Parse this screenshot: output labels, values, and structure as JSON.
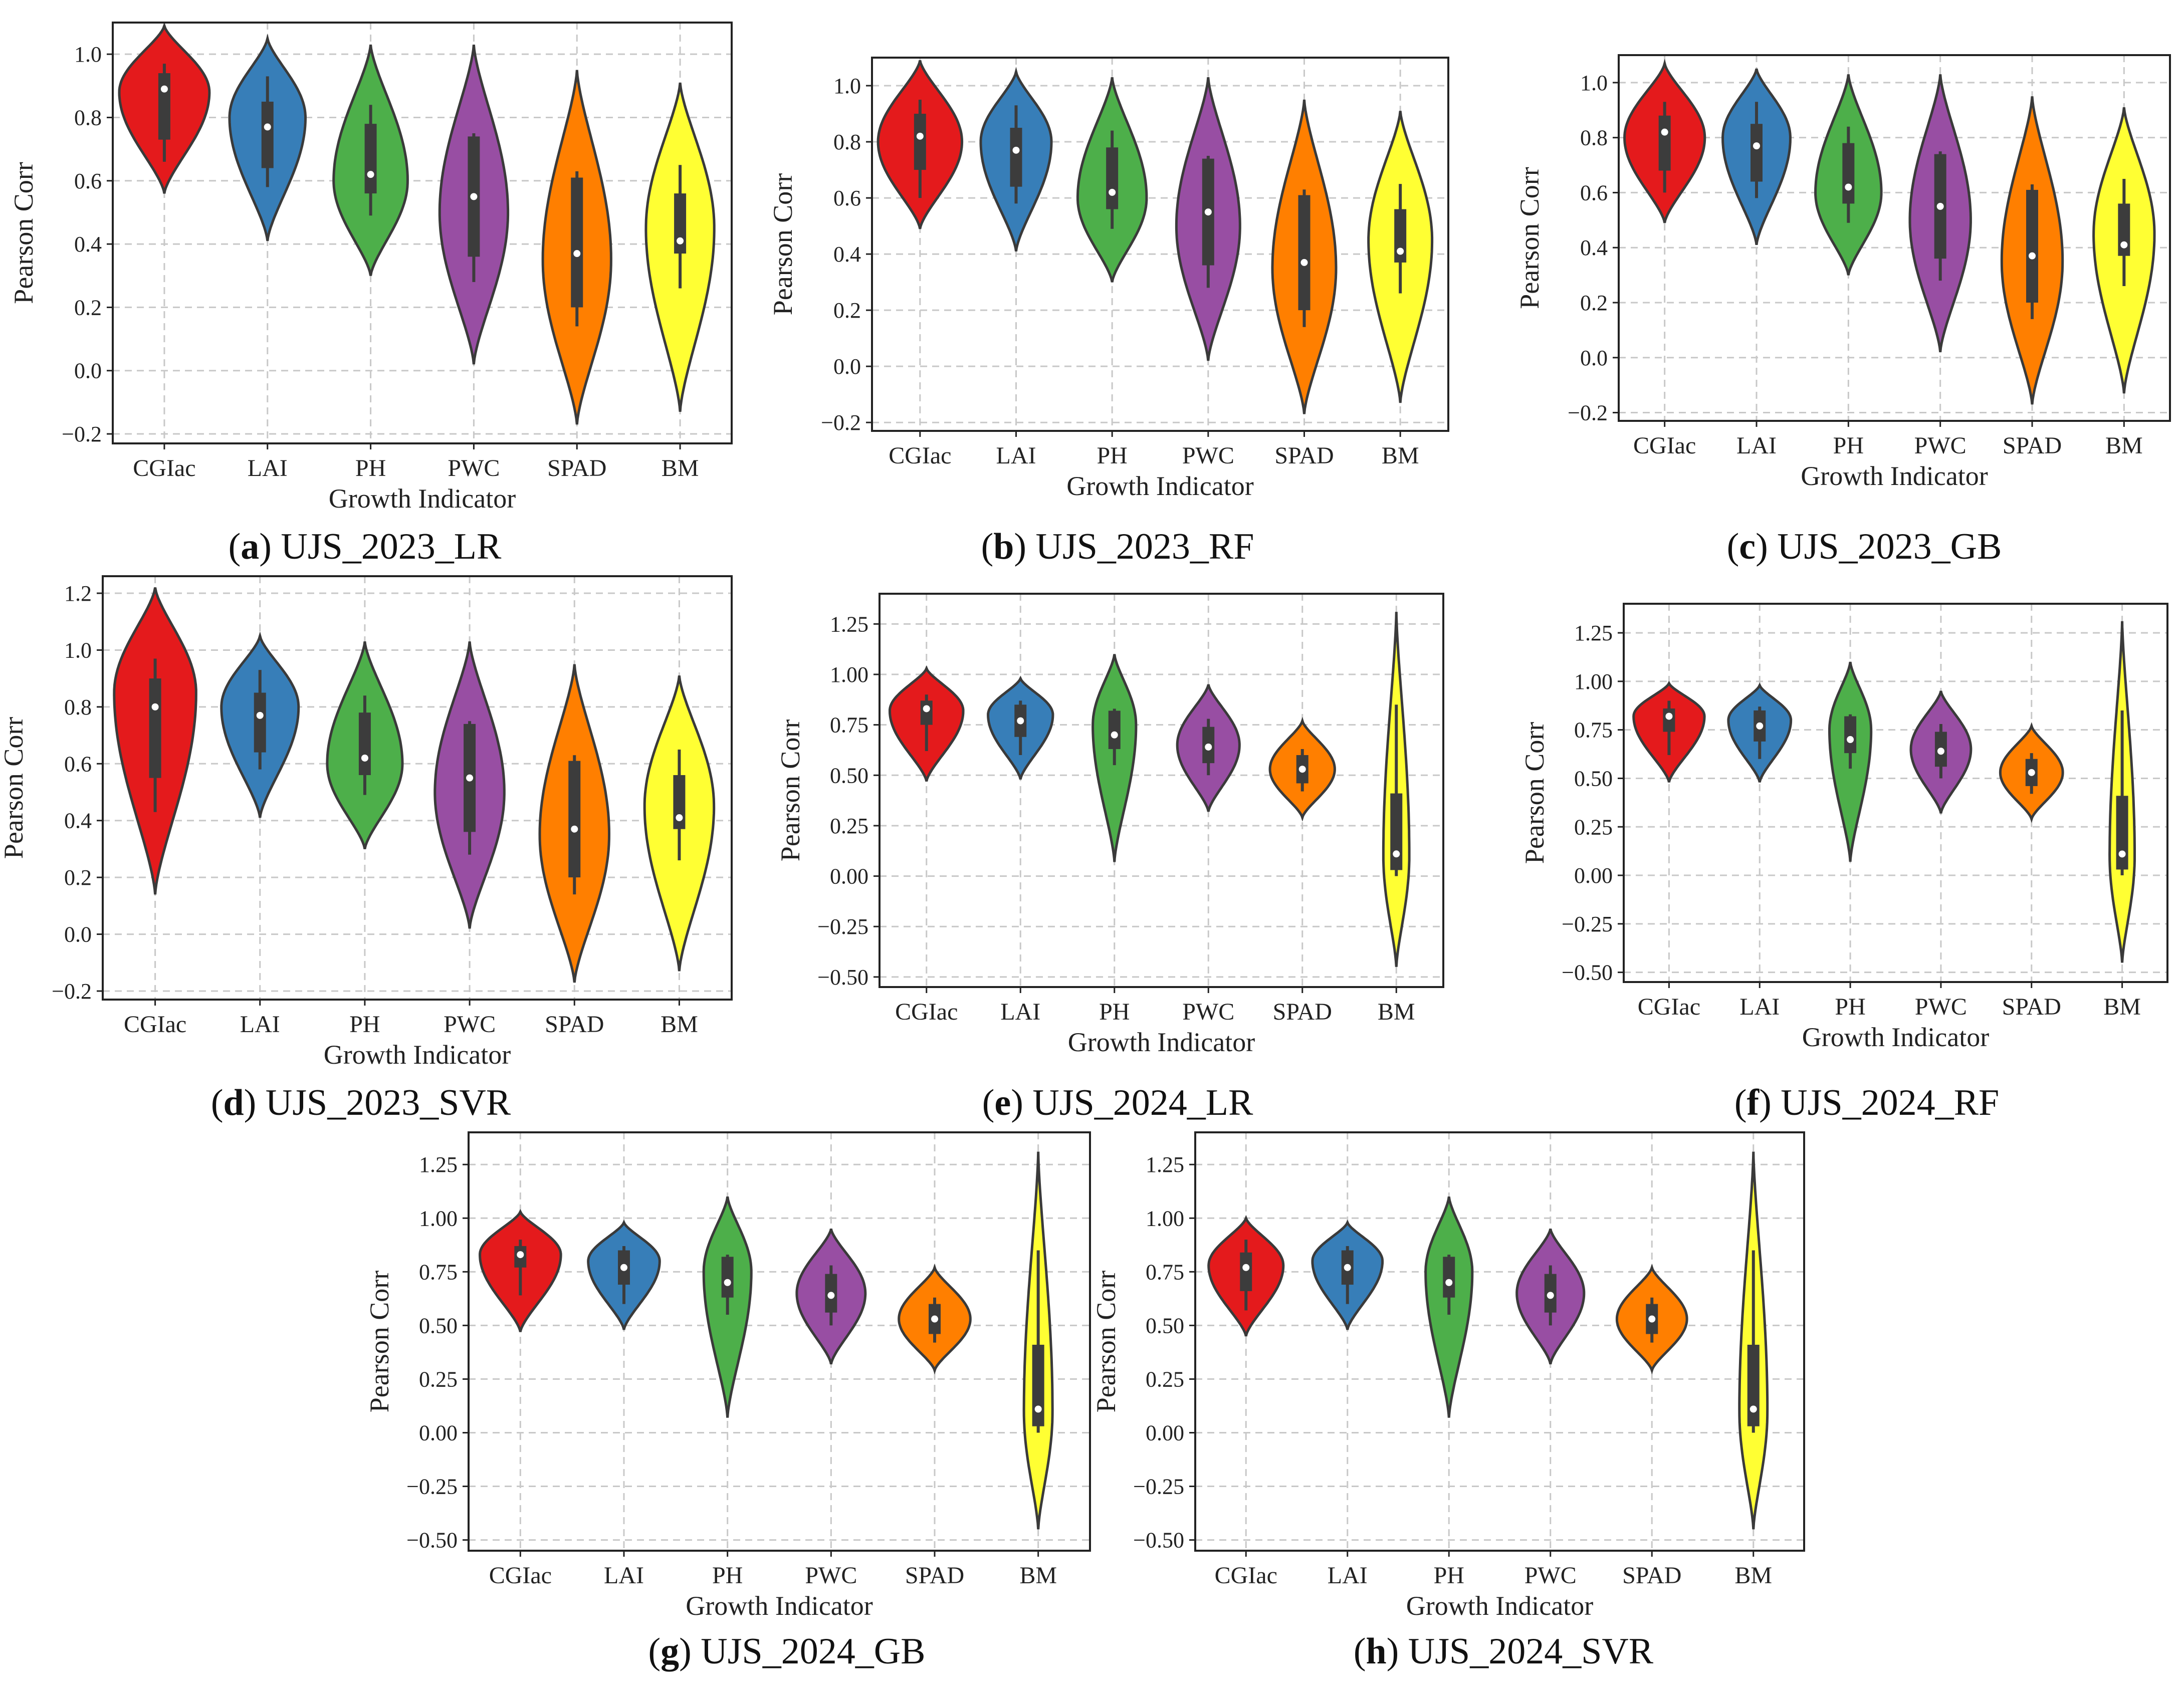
{
  "figure": {
    "xlabel": "Growth Indicator",
    "ylabel": "Pearson Corr",
    "palette": {
      "CGIac": "#e41a1c",
      "LAI": "#377eb8",
      "PH": "#4daf4a",
      "PWC": "#984ea3",
      "SPAD": "#ff7f00",
      "BM": "#ffff33"
    },
    "edge_color": "#3a3a3a",
    "grid_color": "#c8c8c8"
  },
  "chart_data": [
    {
      "type": "violin",
      "letter": "a",
      "caption": "UJS_2023_LR",
      "categories": [
        "CGIac",
        "LAI",
        "PH",
        "PWC",
        "SPAD",
        "BM"
      ],
      "xlabel": "Growth Indicator",
      "ylabel": "Pearson Corr",
      "ylim": [
        -0.23,
        1.1
      ],
      "yticks": [
        "1.0",
        "0.8",
        "0.6",
        "0.4",
        "0.2",
        "0.0",
        "−0.2"
      ],
      "ytick_values": [
        1.0,
        0.8,
        0.6,
        0.4,
        0.2,
        0.0,
        -0.2
      ],
      "series": [
        {
          "name": "CGIac",
          "min": 0.56,
          "max": 1.09,
          "q1": 0.73,
          "median": 0.89,
          "q3": 0.94,
          "wlo": 0.66,
          "whi": 0.97,
          "peak": 0.88,
          "width": 0.95
        },
        {
          "name": "LAI",
          "min": 0.41,
          "max": 1.05,
          "q1": 0.64,
          "median": 0.77,
          "q3": 0.85,
          "wlo": 0.58,
          "whi": 0.93,
          "peak": 0.8,
          "width": 0.8
        },
        {
          "name": "PH",
          "min": 0.3,
          "max": 1.03,
          "q1": 0.56,
          "median": 0.62,
          "q3": 0.78,
          "wlo": 0.49,
          "whi": 0.84,
          "peak": 0.6,
          "width": 0.78
        },
        {
          "name": "PWC",
          "min": 0.02,
          "max": 1.03,
          "q1": 0.36,
          "median": 0.55,
          "q3": 0.74,
          "wlo": 0.28,
          "whi": 0.75,
          "peak": 0.5,
          "width": 0.72
        },
        {
          "name": "SPAD",
          "min": -0.17,
          "max": 0.95,
          "q1": 0.2,
          "median": 0.37,
          "q3": 0.61,
          "wlo": 0.14,
          "whi": 0.63,
          "peak": 0.35,
          "width": 0.72
        },
        {
          "name": "BM",
          "min": -0.13,
          "max": 0.91,
          "q1": 0.37,
          "median": 0.41,
          "q3": 0.56,
          "wlo": 0.26,
          "whi": 0.65,
          "peak": 0.45,
          "width": 0.72
        }
      ]
    },
    {
      "type": "violin",
      "letter": "b",
      "caption": "UJS_2023_RF",
      "categories": [
        "CGIac",
        "LAI",
        "PH",
        "PWC",
        "SPAD",
        "BM"
      ],
      "xlabel": "Growth Indicator",
      "ylabel": "Pearson Corr",
      "ylim": [
        -0.23,
        1.1
      ],
      "yticks": [
        "1.0",
        "0.8",
        "0.6",
        "0.4",
        "0.2",
        "0.0",
        "−0.2"
      ],
      "ytick_values": [
        1.0,
        0.8,
        0.6,
        0.4,
        0.2,
        0.0,
        -0.2
      ],
      "series": [
        {
          "name": "CGIac",
          "min": 0.49,
          "max": 1.09,
          "q1": 0.7,
          "median": 0.82,
          "q3": 0.9,
          "wlo": 0.6,
          "whi": 0.95,
          "peak": 0.8,
          "width": 0.95
        },
        {
          "name": "LAI",
          "min": 0.41,
          "max": 1.05,
          "q1": 0.64,
          "median": 0.77,
          "q3": 0.85,
          "wlo": 0.58,
          "whi": 0.93,
          "peak": 0.8,
          "width": 0.8
        },
        {
          "name": "PH",
          "min": 0.3,
          "max": 1.03,
          "q1": 0.56,
          "median": 0.62,
          "q3": 0.78,
          "wlo": 0.49,
          "whi": 0.84,
          "peak": 0.6,
          "width": 0.78
        },
        {
          "name": "PWC",
          "min": 0.02,
          "max": 1.03,
          "q1": 0.36,
          "median": 0.55,
          "q3": 0.74,
          "wlo": 0.28,
          "whi": 0.75,
          "peak": 0.5,
          "width": 0.72
        },
        {
          "name": "SPAD",
          "min": -0.17,
          "max": 0.95,
          "q1": 0.2,
          "median": 0.37,
          "q3": 0.61,
          "wlo": 0.14,
          "whi": 0.63,
          "peak": 0.35,
          "width": 0.72
        },
        {
          "name": "BM",
          "min": -0.13,
          "max": 0.91,
          "q1": 0.37,
          "median": 0.41,
          "q3": 0.56,
          "wlo": 0.26,
          "whi": 0.65,
          "peak": 0.45,
          "width": 0.72
        }
      ]
    },
    {
      "type": "violin",
      "letter": "c",
      "caption": "UJS_2023_GB",
      "categories": [
        "CGIac",
        "LAI",
        "PH",
        "PWC",
        "SPAD",
        "BM"
      ],
      "xlabel": "Growth Indicator",
      "ylabel": "Pearson Corr",
      "ylim": [
        -0.23,
        1.1
      ],
      "yticks": [
        "1.0",
        "0.8",
        "0.6",
        "0.4",
        "0.2",
        "0.0",
        "−0.2"
      ],
      "ytick_values": [
        1.0,
        0.8,
        0.6,
        0.4,
        0.2,
        0.0,
        -0.2
      ],
      "series": [
        {
          "name": "CGIac",
          "min": 0.49,
          "max": 1.07,
          "q1": 0.68,
          "median": 0.82,
          "q3": 0.88,
          "wlo": 0.6,
          "whi": 0.93,
          "peak": 0.8,
          "width": 0.95
        },
        {
          "name": "LAI",
          "min": 0.41,
          "max": 1.05,
          "q1": 0.64,
          "median": 0.77,
          "q3": 0.85,
          "wlo": 0.58,
          "whi": 0.93,
          "peak": 0.8,
          "width": 0.8
        },
        {
          "name": "PH",
          "min": 0.3,
          "max": 1.03,
          "q1": 0.56,
          "median": 0.62,
          "q3": 0.78,
          "wlo": 0.49,
          "whi": 0.84,
          "peak": 0.6,
          "width": 0.78
        },
        {
          "name": "PWC",
          "min": 0.02,
          "max": 1.03,
          "q1": 0.36,
          "median": 0.55,
          "q3": 0.74,
          "wlo": 0.28,
          "whi": 0.75,
          "peak": 0.5,
          "width": 0.72
        },
        {
          "name": "SPAD",
          "min": -0.17,
          "max": 0.95,
          "q1": 0.2,
          "median": 0.37,
          "q3": 0.61,
          "wlo": 0.14,
          "whi": 0.63,
          "peak": 0.35,
          "width": 0.72
        },
        {
          "name": "BM",
          "min": -0.13,
          "max": 0.91,
          "q1": 0.37,
          "median": 0.41,
          "q3": 0.56,
          "wlo": 0.26,
          "whi": 0.65,
          "peak": 0.45,
          "width": 0.72
        }
      ]
    },
    {
      "type": "violin",
      "letter": "d",
      "caption": "UJS_2023_SVR",
      "categories": [
        "CGIac",
        "LAI",
        "PH",
        "PWC",
        "SPAD",
        "BM"
      ],
      "xlabel": "Growth Indicator",
      "ylabel": "Pearson Corr",
      "ylim": [
        -0.23,
        1.26
      ],
      "yticks": [
        "1.2",
        "1.0",
        "0.8",
        "0.6",
        "0.4",
        "0.2",
        "0.0",
        "−0.2"
      ],
      "ytick_values": [
        1.2,
        1.0,
        0.8,
        0.6,
        0.4,
        0.2,
        0.0,
        -0.2
      ],
      "series": [
        {
          "name": "CGIac",
          "min": 0.14,
          "max": 1.22,
          "q1": 0.55,
          "median": 0.8,
          "q3": 0.9,
          "wlo": 0.43,
          "whi": 0.97,
          "peak": 0.85,
          "width": 0.85
        },
        {
          "name": "LAI",
          "min": 0.41,
          "max": 1.05,
          "q1": 0.64,
          "median": 0.77,
          "q3": 0.85,
          "wlo": 0.58,
          "whi": 0.93,
          "peak": 0.8,
          "width": 0.8
        },
        {
          "name": "PH",
          "min": 0.3,
          "max": 1.03,
          "q1": 0.56,
          "median": 0.62,
          "q3": 0.78,
          "wlo": 0.49,
          "whi": 0.84,
          "peak": 0.6,
          "width": 0.78
        },
        {
          "name": "PWC",
          "min": 0.02,
          "max": 1.03,
          "q1": 0.36,
          "median": 0.55,
          "q3": 0.74,
          "wlo": 0.28,
          "whi": 0.75,
          "peak": 0.5,
          "width": 0.72
        },
        {
          "name": "SPAD",
          "min": -0.17,
          "max": 0.95,
          "q1": 0.2,
          "median": 0.37,
          "q3": 0.61,
          "wlo": 0.14,
          "whi": 0.63,
          "peak": 0.35,
          "width": 0.72
        },
        {
          "name": "BM",
          "min": -0.13,
          "max": 0.91,
          "q1": 0.37,
          "median": 0.41,
          "q3": 0.56,
          "wlo": 0.26,
          "whi": 0.65,
          "peak": 0.45,
          "width": 0.72
        }
      ]
    },
    {
      "type": "violin",
      "letter": "e",
      "caption": "UJS_2024_LR",
      "categories": [
        "CGIac",
        "LAI",
        "PH",
        "PWC",
        "SPAD",
        "BM"
      ],
      "xlabel": "Growth Indicator",
      "ylabel": "Pearson Corr",
      "ylim": [
        -0.55,
        1.4
      ],
      "yticks": [
        "1.25",
        "1.00",
        "0.75",
        "0.50",
        "0.25",
        "0.00",
        "−0.25",
        "−0.50"
      ],
      "ytick_values": [
        1.25,
        1.0,
        0.75,
        0.5,
        0.25,
        0.0,
        -0.25,
        -0.5
      ],
      "series": [
        {
          "name": "CGIac",
          "min": 0.47,
          "max": 1.03,
          "q1": 0.75,
          "median": 0.83,
          "q3": 0.87,
          "wlo": 0.62,
          "whi": 0.9,
          "peak": 0.82,
          "width": 0.85
        },
        {
          "name": "LAI",
          "min": 0.48,
          "max": 0.98,
          "q1": 0.69,
          "median": 0.77,
          "q3": 0.85,
          "wlo": 0.6,
          "whi": 0.87,
          "peak": 0.8,
          "width": 0.75
        },
        {
          "name": "PH",
          "min": 0.07,
          "max": 1.1,
          "q1": 0.63,
          "median": 0.7,
          "q3": 0.82,
          "wlo": 0.55,
          "whi": 0.83,
          "peak": 0.75,
          "width": 0.5
        },
        {
          "name": "PWC",
          "min": 0.32,
          "max": 0.95,
          "q1": 0.56,
          "median": 0.64,
          "q3": 0.74,
          "wlo": 0.5,
          "whi": 0.78,
          "peak": 0.65,
          "width": 0.72
        },
        {
          "name": "SPAD",
          "min": 0.29,
          "max": 0.77,
          "q1": 0.46,
          "median": 0.53,
          "q3": 0.6,
          "wlo": 0.42,
          "whi": 0.63,
          "peak": 0.53,
          "width": 0.75
        },
        {
          "name": "BM",
          "min": -0.45,
          "max": 1.31,
          "q1": 0.03,
          "median": 0.11,
          "q3": 0.41,
          "wlo": 0.0,
          "whi": 0.85,
          "peak": 0.1,
          "width": 0.3
        }
      ]
    },
    {
      "type": "violin",
      "letter": "f",
      "caption": "UJS_2024_RF",
      "categories": [
        "CGIac",
        "LAI",
        "PH",
        "PWC",
        "SPAD",
        "BM"
      ],
      "xlabel": "Growth Indicator",
      "ylabel": "Pearson Corr",
      "ylim": [
        -0.55,
        1.4
      ],
      "yticks": [
        "1.25",
        "1.00",
        "0.75",
        "0.50",
        "0.25",
        "0.00",
        "−0.25",
        "−0.50"
      ],
      "ytick_values": [
        1.25,
        1.0,
        0.75,
        0.5,
        0.25,
        0.0,
        -0.25,
        -0.5
      ],
      "series": [
        {
          "name": "CGIac",
          "min": 0.48,
          "max": 0.99,
          "q1": 0.74,
          "median": 0.82,
          "q3": 0.86,
          "wlo": 0.62,
          "whi": 0.9,
          "peak": 0.82,
          "width": 0.85
        },
        {
          "name": "LAI",
          "min": 0.48,
          "max": 0.98,
          "q1": 0.69,
          "median": 0.77,
          "q3": 0.85,
          "wlo": 0.6,
          "whi": 0.87,
          "peak": 0.8,
          "width": 0.75
        },
        {
          "name": "PH",
          "min": 0.07,
          "max": 1.1,
          "q1": 0.63,
          "median": 0.7,
          "q3": 0.82,
          "wlo": 0.55,
          "whi": 0.83,
          "peak": 0.75,
          "width": 0.5
        },
        {
          "name": "PWC",
          "min": 0.32,
          "max": 0.95,
          "q1": 0.56,
          "median": 0.64,
          "q3": 0.74,
          "wlo": 0.5,
          "whi": 0.78,
          "peak": 0.65,
          "width": 0.72
        },
        {
          "name": "SPAD",
          "min": 0.29,
          "max": 0.77,
          "q1": 0.46,
          "median": 0.53,
          "q3": 0.6,
          "wlo": 0.42,
          "whi": 0.63,
          "peak": 0.53,
          "width": 0.75
        },
        {
          "name": "BM",
          "min": -0.45,
          "max": 1.31,
          "q1": 0.03,
          "median": 0.11,
          "q3": 0.41,
          "wlo": 0.0,
          "whi": 0.85,
          "peak": 0.1,
          "width": 0.3
        }
      ]
    },
    {
      "type": "violin",
      "letter": "g",
      "caption": "UJS_2024_GB",
      "categories": [
        "CGIac",
        "LAI",
        "PH",
        "PWC",
        "SPAD",
        "BM"
      ],
      "xlabel": "Growth Indicator",
      "ylabel": "Pearson Corr",
      "ylim": [
        -0.55,
        1.4
      ],
      "yticks": [
        "1.25",
        "1.00",
        "0.75",
        "0.50",
        "0.25",
        "0.00",
        "−0.25",
        "−0.50"
      ],
      "ytick_values": [
        1.25,
        1.0,
        0.75,
        0.5,
        0.25,
        0.0,
        -0.25,
        -0.5
      ],
      "series": [
        {
          "name": "CGIac",
          "min": 0.47,
          "max": 1.03,
          "q1": 0.77,
          "median": 0.83,
          "q3": 0.87,
          "wlo": 0.64,
          "whi": 0.9,
          "peak": 0.83,
          "width": 0.85
        },
        {
          "name": "LAI",
          "min": 0.48,
          "max": 0.98,
          "q1": 0.69,
          "median": 0.77,
          "q3": 0.85,
          "wlo": 0.6,
          "whi": 0.87,
          "peak": 0.8,
          "width": 0.75
        },
        {
          "name": "PH",
          "min": 0.07,
          "max": 1.1,
          "q1": 0.63,
          "median": 0.7,
          "q3": 0.82,
          "wlo": 0.55,
          "whi": 0.83,
          "peak": 0.75,
          "width": 0.5
        },
        {
          "name": "PWC",
          "min": 0.32,
          "max": 0.95,
          "q1": 0.56,
          "median": 0.64,
          "q3": 0.74,
          "wlo": 0.5,
          "whi": 0.78,
          "peak": 0.65,
          "width": 0.72
        },
        {
          "name": "SPAD",
          "min": 0.29,
          "max": 0.77,
          "q1": 0.46,
          "median": 0.53,
          "q3": 0.6,
          "wlo": 0.42,
          "whi": 0.63,
          "peak": 0.53,
          "width": 0.75
        },
        {
          "name": "BM",
          "min": -0.45,
          "max": 1.31,
          "q1": 0.03,
          "median": 0.11,
          "q3": 0.41,
          "wlo": 0.0,
          "whi": 0.85,
          "peak": 0.1,
          "width": 0.3
        }
      ]
    },
    {
      "type": "violin",
      "letter": "h",
      "caption": "UJS_2024_SVR",
      "categories": [
        "CGIac",
        "LAI",
        "PH",
        "PWC",
        "SPAD",
        "BM"
      ],
      "xlabel": "Growth Indicator",
      "ylabel": "Pearson Corr",
      "ylim": [
        -0.55,
        1.4
      ],
      "yticks": [
        "1.25",
        "1.00",
        "0.75",
        "0.50",
        "0.25",
        "0.00",
        "−0.25",
        "−0.50"
      ],
      "ytick_values": [
        1.25,
        1.0,
        0.75,
        0.5,
        0.25,
        0.0,
        -0.25,
        -0.5
      ],
      "series": [
        {
          "name": "CGIac",
          "min": 0.45,
          "max": 1.0,
          "q1": 0.66,
          "median": 0.77,
          "q3": 0.84,
          "wlo": 0.57,
          "whi": 0.9,
          "peak": 0.78,
          "width": 0.8
        },
        {
          "name": "LAI",
          "min": 0.48,
          "max": 0.98,
          "q1": 0.69,
          "median": 0.77,
          "q3": 0.85,
          "wlo": 0.6,
          "whi": 0.87,
          "peak": 0.8,
          "width": 0.75
        },
        {
          "name": "PH",
          "min": 0.07,
          "max": 1.1,
          "q1": 0.63,
          "median": 0.7,
          "q3": 0.82,
          "wlo": 0.55,
          "whi": 0.83,
          "peak": 0.75,
          "width": 0.5
        },
        {
          "name": "PWC",
          "min": 0.32,
          "max": 0.95,
          "q1": 0.56,
          "median": 0.64,
          "q3": 0.74,
          "wlo": 0.5,
          "whi": 0.78,
          "peak": 0.65,
          "width": 0.72
        },
        {
          "name": "SPAD",
          "min": 0.29,
          "max": 0.77,
          "q1": 0.46,
          "median": 0.53,
          "q3": 0.6,
          "wlo": 0.42,
          "whi": 0.63,
          "peak": 0.53,
          "width": 0.75
        },
        {
          "name": "BM",
          "min": -0.45,
          "max": 1.31,
          "q1": 0.03,
          "median": 0.11,
          "q3": 0.41,
          "wlo": 0.0,
          "whi": 0.85,
          "peak": 0.1,
          "width": 0.3
        }
      ]
    }
  ]
}
